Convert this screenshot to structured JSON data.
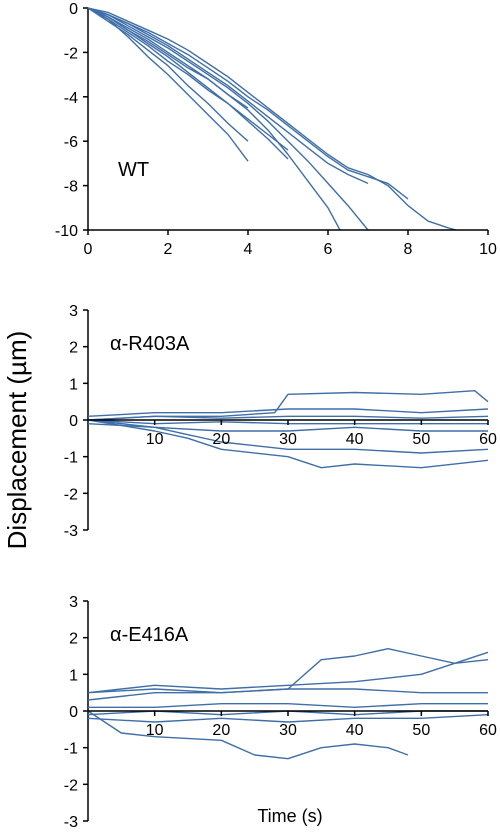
{
  "figure": {
    "ylabel": "Displacement (µm)",
    "xlabel": "Time (s)",
    "line_color": "#3f6fa8"
  },
  "chart_data": [
    {
      "type": "line",
      "panel_label": "WT",
      "xlim": [
        0,
        10
      ],
      "ylim": [
        -10,
        0
      ],
      "xticks": [
        "0",
        "2",
        "4",
        "6",
        "8",
        "10"
      ],
      "yticks": [
        "0",
        "-2",
        "-4",
        "-6",
        "-8",
        "-10"
      ],
      "series": [
        {
          "x": [
            0,
            0.5,
            1,
            1.5,
            2,
            2.5,
            3,
            3.5,
            4
          ],
          "y": [
            0,
            -0.6,
            -1.2,
            -1.9,
            -2.6,
            -3.5,
            -4.3,
            -5.2,
            -6.0
          ]
        },
        {
          "x": [
            0,
            0.5,
            1,
            1.5,
            2,
            2.5,
            3,
            3.5,
            4
          ],
          "y": [
            0,
            -0.5,
            -1.3,
            -2.2,
            -3.0,
            -3.9,
            -4.8,
            -5.7,
            -6.9
          ]
        },
        {
          "x": [
            0,
            0.5,
            1,
            1.5,
            2,
            2.5,
            3,
            3.5,
            4,
            4.5,
            5
          ],
          "y": [
            0,
            -0.4,
            -1.0,
            -1.6,
            -2.2,
            -2.9,
            -3.6,
            -4.3,
            -5.1,
            -5.9,
            -6.8
          ]
        },
        {
          "x": [
            0,
            0.5,
            1,
            1.5,
            2,
            2.5,
            3,
            3.5,
            4,
            4.5,
            5,
            5.5,
            6,
            6.3
          ],
          "y": [
            0,
            -0.4,
            -0.9,
            -1.4,
            -2.0,
            -2.6,
            -3.2,
            -3.9,
            -4.6,
            -5.5,
            -6.6,
            -7.8,
            -9.0,
            -10
          ]
        },
        {
          "x": [
            0,
            0.5,
            1,
            1.5,
            2,
            2.5,
            3,
            3.5,
            4,
            4.5,
            5,
            5.5,
            6,
            6.5,
            7
          ],
          "y": [
            0,
            -0.3,
            -0.8,
            -1.3,
            -1.8,
            -2.4,
            -3.0,
            -3.6,
            -4.3,
            -5.1,
            -6.0,
            -6.9,
            -7.9,
            -8.9,
            -10
          ]
        },
        {
          "x": [
            0,
            0.5,
            1,
            1.5,
            2,
            2.5,
            3,
            3.5,
            4,
            4.5,
            5,
            5.5,
            6,
            6.5,
            7
          ],
          "y": [
            0,
            -0.3,
            -0.7,
            -1.2,
            -1.7,
            -2.3,
            -2.9,
            -3.5,
            -4.2,
            -4.9,
            -5.6,
            -6.3,
            -7.0,
            -7.5,
            -7.9
          ]
        },
        {
          "x": [
            0,
            0.5,
            1,
            1.5,
            2,
            2.5,
            3,
            3.5,
            4,
            4.5,
            5,
            5.5,
            6,
            6.5,
            7,
            7.5,
            8
          ],
          "y": [
            0,
            -0.3,
            -0.7,
            -1.1,
            -1.6,
            -2.1,
            -2.7,
            -3.3,
            -4.0,
            -4.6,
            -5.3,
            -6.0,
            -6.7,
            -7.3,
            -7.6,
            -7.9,
            -8.6
          ]
        },
        {
          "x": [
            0,
            0.5,
            1,
            1.5,
            2,
            2.5,
            3,
            3.5,
            4,
            4.5,
            5,
            5.5,
            6,
            6.5,
            7,
            7.5,
            8,
            8.5,
            9,
            9.2
          ],
          "y": [
            0,
            -0.2,
            -0.6,
            -1.0,
            -1.4,
            -1.9,
            -2.5,
            -3.1,
            -3.8,
            -4.5,
            -5.2,
            -5.9,
            -6.6,
            -7.2,
            -7.5,
            -8.0,
            -8.9,
            -9.6,
            -9.9,
            -10
          ]
        },
        {
          "x": [
            0,
            0.5,
            1,
            1.5,
            2,
            2.5,
            3,
            3.5,
            4,
            4.5,
            5
          ],
          "y": [
            0,
            -0.5,
            -1.1,
            -1.7,
            -2.4,
            -3.0,
            -3.7,
            -4.3,
            -5.0,
            -5.7,
            -6.4
          ]
        },
        {
          "x": [
            0,
            0.5,
            1,
            1.5,
            2,
            2.5,
            3,
            3.5,
            4
          ],
          "y": [
            0,
            -0.4,
            -1.0,
            -1.5,
            -2.1,
            -2.7,
            -3.2,
            -3.9,
            -4.5
          ]
        }
      ]
    },
    {
      "type": "line",
      "panel_label": "α-R403A",
      "xlim": [
        0,
        60
      ],
      "ylim": [
        -3,
        3
      ],
      "xticks": [
        "10",
        "20",
        "30",
        "40",
        "50",
        "60"
      ],
      "yticks": [
        "3",
        "2",
        "1",
        "0",
        "-1",
        "-2",
        "-3"
      ],
      "series": [
        {
          "x": [
            0,
            10,
            20,
            28,
            30,
            40,
            50,
            58,
            60
          ],
          "y": [
            0,
            0.1,
            0.1,
            0.2,
            0.7,
            0.75,
            0.7,
            0.8,
            0.5
          ]
        },
        {
          "x": [
            0,
            10,
            20,
            30,
            40,
            50,
            60
          ],
          "y": [
            0.1,
            0.2,
            0.2,
            0.3,
            0.3,
            0.2,
            0.3
          ]
        },
        {
          "x": [
            0,
            10,
            20,
            30,
            40,
            50,
            60
          ],
          "y": [
            0,
            0.1,
            0.05,
            0.1,
            0.1,
            0.05,
            0.1
          ]
        },
        {
          "x": [
            0,
            10,
            20,
            30,
            40,
            50,
            60
          ],
          "y": [
            0,
            -0.1,
            -0.05,
            -0.1,
            -0.1,
            -0.1,
            -0.1
          ]
        },
        {
          "x": [
            0,
            10,
            20,
            30,
            40,
            50,
            60
          ],
          "y": [
            -0.1,
            -0.2,
            -0.3,
            -0.3,
            -0.2,
            -0.3,
            -0.3
          ]
        },
        {
          "x": [
            0,
            10,
            15,
            20,
            30,
            40,
            50,
            60
          ],
          "y": [
            0,
            -0.2,
            -0.4,
            -0.6,
            -0.8,
            -0.8,
            -0.9,
            -0.8
          ]
        },
        {
          "x": [
            0,
            10,
            15,
            20,
            30,
            35,
            40,
            50,
            60
          ],
          "y": [
            0,
            -0.3,
            -0.5,
            -0.8,
            -1.0,
            -1.3,
            -1.2,
            -1.3,
            -1.1
          ]
        }
      ]
    },
    {
      "type": "line",
      "panel_label": "α-E416A",
      "xlim": [
        0,
        60
      ],
      "ylim": [
        -3,
        3
      ],
      "xticks": [
        "10",
        "20",
        "30",
        "40",
        "50",
        "60"
      ],
      "yticks": [
        "3",
        "2",
        "1",
        "0",
        "-1",
        "-2",
        "-3"
      ],
      "series": [
        {
          "x": [
            0,
            10,
            20,
            30,
            35,
            40,
            45,
            50,
            55,
            60
          ],
          "y": [
            0.5,
            0.6,
            0.5,
            0.6,
            1.4,
            1.5,
            1.7,
            1.5,
            1.3,
            1.6
          ]
        },
        {
          "x": [
            0,
            10,
            20,
            30,
            40,
            50,
            55,
            60
          ],
          "y": [
            0.5,
            0.7,
            0.6,
            0.7,
            0.8,
            1.0,
            1.3,
            1.4
          ]
        },
        {
          "x": [
            0,
            10,
            20,
            30,
            40,
            50,
            60
          ],
          "y": [
            0.3,
            0.5,
            0.5,
            0.6,
            0.6,
            0.5,
            0.5
          ]
        },
        {
          "x": [
            0,
            10,
            20,
            30,
            40,
            50,
            60
          ],
          "y": [
            0.1,
            0.1,
            0.2,
            0.2,
            0.1,
            0.2,
            0.2
          ]
        },
        {
          "x": [
            0,
            10,
            20,
            30,
            40,
            50,
            60
          ],
          "y": [
            -0.1,
            0,
            -0.1,
            0,
            -0.1,
            0,
            0
          ]
        },
        {
          "x": [
            0,
            10,
            20,
            30,
            40,
            50,
            60
          ],
          "y": [
            -0.2,
            -0.3,
            -0.2,
            -0.3,
            -0.2,
            -0.2,
            -0.1
          ]
        },
        {
          "x": [
            0,
            5,
            10,
            20,
            25,
            30,
            35,
            40,
            45,
            48
          ],
          "y": [
            0,
            -0.6,
            -0.7,
            -0.8,
            -1.2,
            -1.3,
            -1.0,
            -0.9,
            -1.0,
            -1.2
          ]
        }
      ]
    }
  ]
}
